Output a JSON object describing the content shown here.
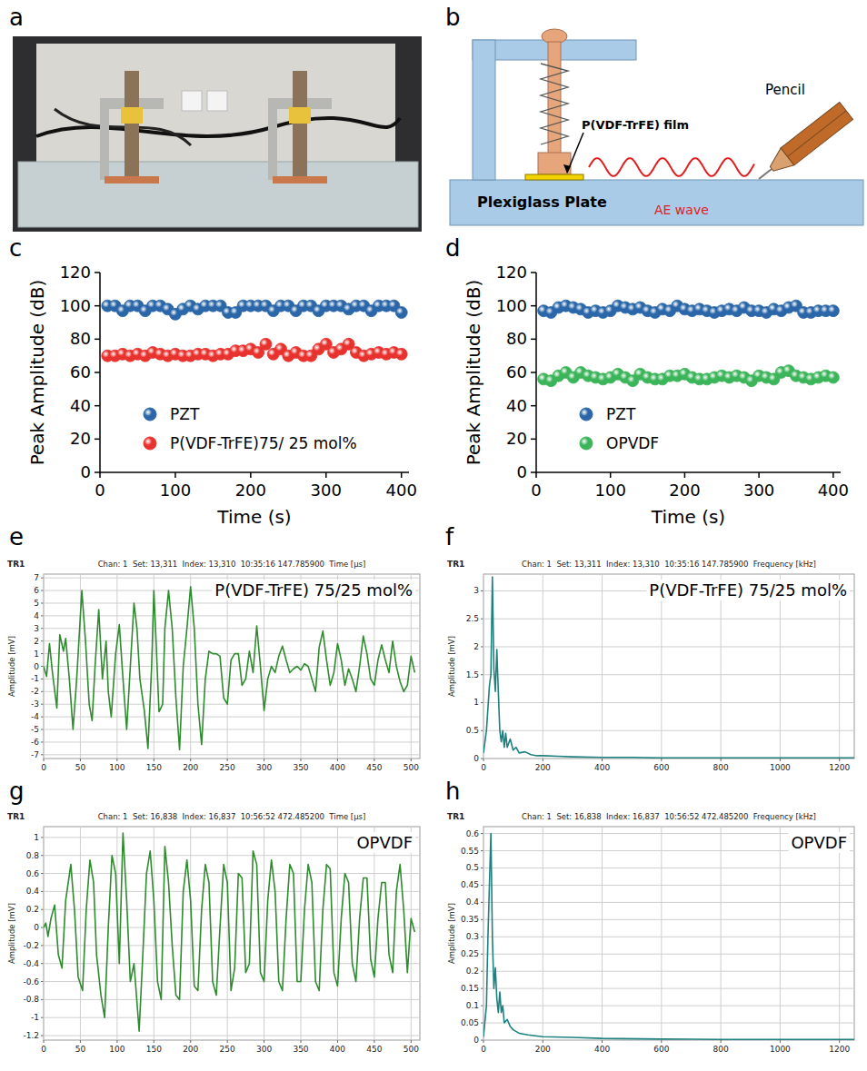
{
  "photo": {
    "panel": "a"
  },
  "diagram": {
    "panel": "b",
    "film": "P(VDF-TrFE) film",
    "pencil": "Pencil",
    "plate": "Plexiglass Plate",
    "wave": "AE wave"
  },
  "chart_data": [
    {
      "panel": "c",
      "type": "scatter",
      "xlabel": "Time (s)",
      "ylabel": "Peak Amplitude (dB)",
      "xlim": [
        0,
        410
      ],
      "ylim": [
        0,
        120
      ],
      "xticks": [
        0,
        100,
        200,
        300,
        400
      ],
      "yticks": [
        0,
        20,
        40,
        60,
        80,
        100,
        120
      ],
      "grid": false,
      "legend": "lower left",
      "x": [
        10,
        20,
        30,
        40,
        50,
        60,
        70,
        80,
        90,
        100,
        110,
        120,
        130,
        140,
        150,
        160,
        170,
        180,
        190,
        200,
        210,
        220,
        230,
        240,
        250,
        260,
        270,
        280,
        290,
        300,
        310,
        320,
        330,
        340,
        350,
        360,
        370,
        380,
        390,
        400
      ],
      "series": [
        {
          "name": "PZT",
          "color": "#2b67a8",
          "marker": "circle",
          "values": [
            100,
            100,
            97,
            100,
            100,
            97,
            100,
            100,
            98,
            95,
            98,
            100,
            98,
            100,
            100,
            100,
            96,
            96,
            100,
            100,
            100,
            100,
            97,
            100,
            100,
            97,
            100,
            100,
            97,
            100,
            100,
            100,
            98,
            100,
            100,
            97,
            100,
            100,
            100,
            96
          ]
        },
        {
          "name": "P(VDF-TrFE)75/ 25 mol%",
          "color": "#e8322e",
          "marker": "circle",
          "values": [
            70,
            70,
            71,
            70,
            71,
            70,
            72,
            71,
            70,
            71,
            70,
            70,
            71,
            71,
            70,
            71,
            71,
            73,
            73,
            74,
            72,
            77,
            71,
            74,
            70,
            72,
            70,
            70,
            74,
            77,
            72,
            74,
            77,
            72,
            70,
            71,
            72,
            71,
            72,
            71
          ]
        }
      ]
    },
    {
      "panel": "d",
      "type": "scatter",
      "xlabel": "Time (s)",
      "ylabel": "Peak Amplitude (dB)",
      "xlim": [
        0,
        410
      ],
      "ylim": [
        0,
        120
      ],
      "xticks": [
        0,
        100,
        200,
        300,
        400
      ],
      "yticks": [
        0,
        20,
        40,
        60,
        80,
        100,
        120
      ],
      "grid": false,
      "legend": "lower left",
      "x": [
        10,
        20,
        30,
        40,
        50,
        60,
        70,
        80,
        90,
        100,
        110,
        120,
        130,
        140,
        150,
        160,
        170,
        180,
        190,
        200,
        210,
        220,
        230,
        240,
        250,
        260,
        270,
        280,
        290,
        300,
        310,
        320,
        330,
        340,
        350,
        360,
        370,
        380,
        390,
        400
      ],
      "series": [
        {
          "name": "PZT",
          "color": "#2b67a8",
          "marker": "circle",
          "values": [
            97,
            96,
            99,
            100,
            99,
            98,
            96,
            97,
            96,
            97,
            100,
            99,
            98,
            99,
            97,
            96,
            98,
            97,
            100,
            98,
            97,
            98,
            97,
            96,
            97,
            98,
            97,
            99,
            97,
            97,
            96,
            98,
            97,
            99,
            100,
            96,
            96,
            97,
            97,
            97
          ]
        },
        {
          "name": "OPVDF",
          "color": "#3cb55a",
          "marker": "circle",
          "values": [
            56,
            55,
            58,
            60,
            57,
            60,
            58,
            57,
            56,
            57,
            59,
            57,
            55,
            59,
            57,
            56,
            56,
            58,
            58,
            59,
            57,
            56,
            56,
            57,
            58,
            57,
            58,
            57,
            55,
            58,
            57,
            56,
            60,
            61,
            58,
            57,
            56,
            57,
            58,
            57
          ]
        }
      ]
    },
    {
      "panel": "e",
      "type": "line",
      "annotations": [
        "TR1"
      ],
      "subtitle": "Chan: 1  Set: 13,311  Index: 13,310  10:35:16 147.785900  Time [µs]",
      "title": "P(VDF-TrFE) 75/25 mol%",
      "ylabel": "Amplitude [mV]",
      "xlim": [
        0,
        512
      ],
      "ylim": [
        -7.3,
        7.3
      ],
      "xticks": [
        0,
        50,
        100,
        150,
        200,
        250,
        300,
        350,
        400,
        450,
        500
      ],
      "yticks": [
        -7,
        -6,
        -5,
        -4,
        -3,
        -2,
        -1,
        0,
        1,
        2,
        3,
        4,
        5,
        6,
        7
      ],
      "grid": true,
      "color": "#2e8b2e",
      "x": [
        0,
        4,
        8,
        12,
        18,
        22,
        27,
        30,
        35,
        40,
        45,
        52,
        57,
        62,
        66,
        70,
        75,
        80,
        85,
        88,
        92,
        98,
        103,
        108,
        113,
        118,
        123,
        127,
        131,
        137,
        142,
        147,
        150,
        153,
        157,
        162,
        165,
        170,
        175,
        180,
        185,
        190,
        195,
        200,
        205,
        210,
        215,
        220,
        225,
        230,
        235,
        240,
        245,
        250,
        255,
        260,
        265,
        270,
        275,
        280,
        285,
        290,
        295,
        300,
        305,
        310,
        315,
        320,
        325,
        330,
        335,
        340,
        345,
        350,
        355,
        360,
        365,
        370,
        375,
        380,
        385,
        390,
        395,
        400,
        405,
        410,
        415,
        420,
        425,
        430,
        435,
        440,
        445,
        450,
        455,
        460,
        465,
        470,
        475,
        480,
        485,
        490,
        495,
        500,
        505
      ],
      "values": [
        0,
        -0.8,
        1.8,
        -0.5,
        -3.3,
        2.5,
        1.2,
        2.2,
        -1,
        -5,
        -1,
        6,
        2,
        -3,
        -4.3,
        0,
        4.5,
        -1,
        2,
        -2,
        -4,
        1,
        3.3,
        -1,
        -5,
        0,
        5,
        3,
        -1,
        -3.5,
        -6.5,
        0,
        6,
        2,
        -3.6,
        -3,
        3,
        6,
        3,
        -2.5,
        -6.6,
        0,
        3,
        6.3,
        3,
        -3,
        -6.2,
        -1,
        1.2,
        1,
        1,
        0.8,
        -2.5,
        -3,
        0.5,
        1,
        1,
        -1.5,
        -1,
        1.2,
        -0.5,
        3.2,
        0,
        -3.5,
        -1,
        0,
        -0.5,
        0.8,
        1.6,
        0.5,
        -0.5,
        -0.2,
        0,
        -0.3,
        0.2,
        0,
        -1,
        -2,
        1.5,
        2.8,
        0.5,
        -1.5,
        -0.5,
        1.8,
        0.5,
        -1.5,
        -0.2,
        -1,
        -2,
        0,
        2.4,
        1,
        -1,
        -1.5,
        0.5,
        1.7,
        0.5,
        -0.5,
        2,
        0,
        -1.2,
        -2,
        -1.5,
        0.8,
        -0.5
      ]
    },
    {
      "panel": "f",
      "type": "line",
      "annotations": [
        "TR1"
      ],
      "subtitle": "Chan: 1  Set: 13,311  Index: 13,310  10:35:16 147.785900  Frequency [kHz]",
      "title": "P(VDF-TrFE) 75/25 mol%",
      "ylabel": "Amplitude [mV]",
      "xlim": [
        0,
        1250
      ],
      "ylim": [
        0,
        3.3
      ],
      "xticks": [
        0,
        200,
        400,
        600,
        800,
        1000,
        1200
      ],
      "yticks": [
        0,
        0.5,
        1,
        1.5,
        2,
        2.5,
        3
      ],
      "grid": true,
      "color": "#1f8080",
      "x": [
        0,
        10,
        20,
        25,
        30,
        35,
        40,
        45,
        50,
        55,
        60,
        65,
        70,
        75,
        80,
        90,
        100,
        110,
        120,
        140,
        160,
        180,
        200,
        250,
        300,
        400,
        500,
        600,
        800,
        1000,
        1250
      ],
      "values": [
        0.1,
        0.5,
        1.3,
        1.5,
        3.25,
        1.6,
        1.2,
        1.95,
        1.2,
        0.5,
        0.3,
        0.5,
        0.2,
        0.45,
        0.2,
        0.35,
        0.15,
        0.2,
        0.1,
        0.12,
        0.07,
        0.05,
        0.05,
        0.04,
        0.03,
        0.02,
        0.02,
        0.01,
        0.01,
        0.01,
        0.01
      ]
    },
    {
      "panel": "g",
      "type": "line",
      "annotations": [
        "TR1"
      ],
      "subtitle": "Chan: 1  Set: 16,838  Index: 16,837  10:56:52 472.485200  Time [µs]",
      "title": "OPVDF",
      "ylabel": "Amplitude [mV]",
      "xlim": [
        0,
        512
      ],
      "ylim": [
        -1.25,
        1.12
      ],
      "xticks": [
        0,
        50,
        100,
        150,
        200,
        250,
        300,
        350,
        400,
        450,
        500
      ],
      "yticks": [
        -1.2,
        -1,
        -0.8,
        -0.6,
        -0.4,
        -0.2,
        0,
        0.2,
        0.4,
        0.6,
        0.8,
        1
      ],
      "grid": true,
      "color": "#2e8b2e",
      "x": [
        0,
        3,
        6,
        10,
        15,
        20,
        25,
        30,
        37,
        42,
        47,
        53,
        58,
        63,
        68,
        72,
        78,
        83,
        88,
        93,
        98,
        103,
        108,
        113,
        118,
        123,
        130,
        135,
        140,
        145,
        150,
        155,
        160,
        165,
        170,
        175,
        180,
        185,
        190,
        195,
        200,
        205,
        210,
        215,
        220,
        225,
        230,
        235,
        240,
        245,
        250,
        255,
        260,
        265,
        270,
        275,
        280,
        285,
        290,
        295,
        300,
        305,
        310,
        315,
        320,
        325,
        330,
        335,
        340,
        345,
        350,
        355,
        360,
        365,
        370,
        375,
        380,
        385,
        390,
        395,
        400,
        405,
        410,
        415,
        420,
        425,
        430,
        435,
        440,
        445,
        450,
        455,
        460,
        465,
        470,
        475,
        480,
        485,
        490,
        495,
        500,
        505
      ],
      "values": [
        0,
        0.05,
        -0.1,
        0.1,
        0.25,
        -0.3,
        -0.45,
        0.3,
        0.7,
        0.2,
        -0.55,
        -0.7,
        0.2,
        0.75,
        0.5,
        -0.3,
        -0.75,
        -1.0,
        0,
        0.8,
        0.6,
        -0.4,
        1.05,
        0.3,
        -0.6,
        -0.4,
        -1.15,
        -0.3,
        0.6,
        0.85,
        0.3,
        -0.6,
        -0.8,
        0.9,
        0.5,
        -0.2,
        -0.75,
        -0.8,
        0.4,
        0.75,
        0.3,
        -0.65,
        -0.7,
        0.2,
        0.7,
        0.5,
        -0.6,
        -0.75,
        0,
        0.7,
        0.5,
        -0.7,
        -0.45,
        0.6,
        0.55,
        -0.5,
        -0.4,
        0.85,
        0.7,
        -0.5,
        -0.6,
        0.3,
        0.75,
        0.4,
        -0.6,
        -0.7,
        0.1,
        0.7,
        0.6,
        -0.6,
        -0.6,
        0.2,
        0.7,
        0.5,
        -0.6,
        -0.7,
        0.2,
        0.7,
        0.65,
        -0.5,
        -0.65,
        0.1,
        0.6,
        0.5,
        -0.4,
        -0.6,
        0.1,
        0.55,
        0.55,
        -0.35,
        -0.55,
        0.1,
        0.5,
        0.5,
        -0.3,
        -0.5,
        0.4,
        0.7,
        0.2,
        -0.5,
        0.1,
        -0.05
      ]
    },
    {
      "panel": "h",
      "type": "line",
      "annotations": [
        "TR1"
      ],
      "subtitle": "Chan: 1  Set: 16,838  Index: 16,837  10:56:52 472.485200  Frequency [kHz]",
      "title": "OPVDF",
      "ylabel": "Amplitude [mV]",
      "xlim": [
        0,
        1250
      ],
      "ylim": [
        0,
        0.62
      ],
      "xticks": [
        0,
        200,
        400,
        600,
        800,
        1000,
        1200
      ],
      "yticks": [
        0,
        0.05,
        0.1,
        0.15,
        0.2,
        0.25,
        0.3,
        0.35,
        0.4,
        0.45,
        0.5,
        0.55,
        0.6
      ],
      "grid": true,
      "color": "#1f8080",
      "x": [
        0,
        10,
        15,
        20,
        25,
        30,
        35,
        40,
        45,
        50,
        55,
        60,
        65,
        70,
        80,
        90,
        100,
        120,
        150,
        200,
        300,
        400,
        600,
        800,
        1000,
        1250
      ],
      "values": [
        0.01,
        0.1,
        0.3,
        0.45,
        0.6,
        0.3,
        0.15,
        0.21,
        0.12,
        0.08,
        0.14,
        0.08,
        0.1,
        0.05,
        0.06,
        0.04,
        0.03,
        0.02,
        0.015,
        0.01,
        0.008,
        0.005,
        0.003,
        0.002,
        0.002,
        0.002
      ]
    }
  ]
}
